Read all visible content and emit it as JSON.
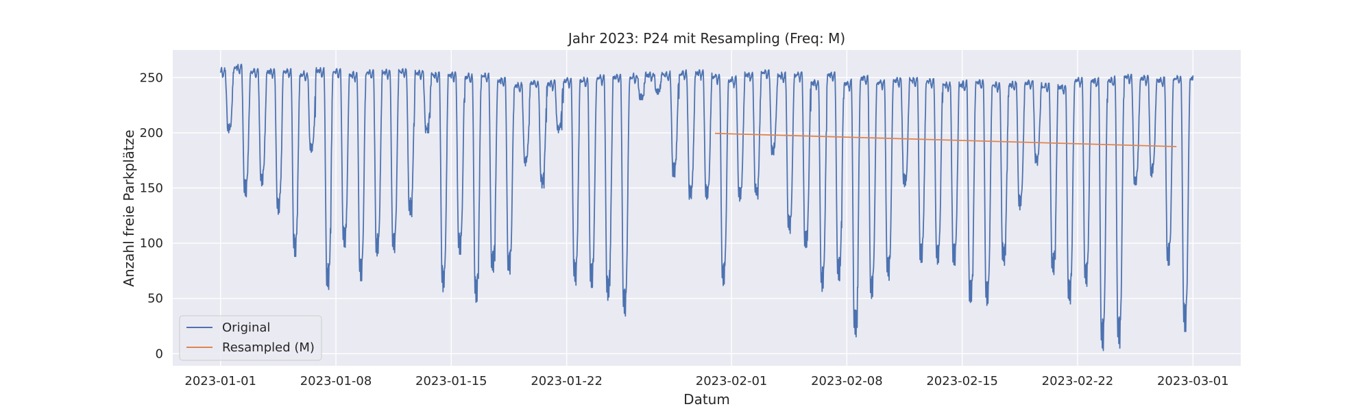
{
  "chart_data": {
    "type": "line",
    "title": "Jahr 2023: P24 mit Resampling (Freq: M)",
    "xlabel": "Datum",
    "ylabel": "Anzahl freie Parkplätze",
    "x_range_days": [
      -2.9,
      61.9
    ],
    "ylim": [
      -11,
      275
    ],
    "y_ticks": [
      0,
      50,
      100,
      150,
      200,
      250
    ],
    "x_ticks": [
      {
        "day": 0,
        "label": "2023-01-01"
      },
      {
        "day": 7,
        "label": "2023-01-08"
      },
      {
        "day": 14,
        "label": "2023-01-15"
      },
      {
        "day": 21,
        "label": "2023-01-22"
      },
      {
        "day": 31,
        "label": "2023-02-01"
      },
      {
        "day": 38,
        "label": "2023-02-08"
      },
      {
        "day": 45,
        "label": "2023-02-15"
      },
      {
        "day": 52,
        "label": "2023-02-22"
      },
      {
        "day": 59,
        "label": "2023-03-01"
      }
    ],
    "grid": true,
    "legend_position": "bottom-left",
    "series": [
      {
        "name": "Original",
        "color": "#4c72b0",
        "resolution": "daily pattern: day minimum, night maximum",
        "start_date": "2023-01-01",
        "end_date": "2023-03-01",
        "daily_min": [
          200,
          142,
          152,
          126,
          88,
          180,
          58,
          95,
          66,
          88,
          90,
          124,
          200,
          56,
          90,
          45,
          72,
          72,
          170,
          150,
          200,
          62,
          60,
          47,
          33,
          230,
          235,
          160,
          138,
          138,
          60,
          138,
          140,
          180,
          108,
          92,
          55,
          66,
          13,
          48,
          66,
          150,
          82,
          80,
          80,
          43,
          42,
          80,
          130,
          170,
          70,
          45,
          60,
          2,
          5,
          150,
          160,
          80,
          20
        ],
        "daily_max": [
          258,
          262,
          258,
          258,
          258,
          255,
          259,
          258,
          255,
          257,
          257,
          258,
          257,
          255,
          255,
          253,
          254,
          250,
          245,
          248,
          247,
          250,
          250,
          252,
          253,
          253,
          255,
          255,
          256,
          257,
          253,
          250,
          255,
          257,
          254,
          255,
          248,
          255,
          247,
          252,
          248,
          250,
          250,
          249,
          246,
          246,
          248,
          246,
          246,
          248,
          245,
          244,
          250,
          250,
          250,
          253,
          252,
          250,
          252
        ]
      },
      {
        "name": "Resampled (M)",
        "color": "#dd8452",
        "points": [
          {
            "date": "2023-01-31",
            "day": 30,
            "value": 199.5
          },
          {
            "date": "2023-02-28",
            "day": 58,
            "value": 187.5
          }
        ]
      }
    ]
  }
}
